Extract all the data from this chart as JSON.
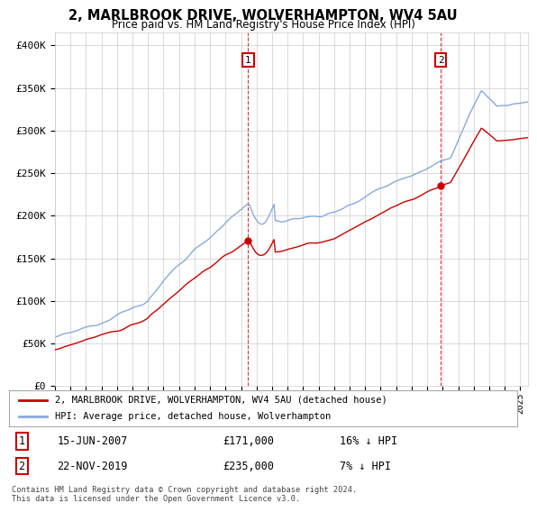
{
  "title": "2, MARLBROOK DRIVE, WOLVERHAMPTON, WV4 5AU",
  "subtitle": "Price paid vs. HM Land Registry's House Price Index (HPI)",
  "ylabel_ticks": [
    "£0",
    "£50K",
    "£100K",
    "£150K",
    "£200K",
    "£250K",
    "£300K",
    "£350K",
    "£400K"
  ],
  "ytick_values": [
    0,
    50000,
    100000,
    150000,
    200000,
    250000,
    300000,
    350000,
    400000
  ],
  "ylim": [
    0,
    415000
  ],
  "legend_property_label": "2, MARLBROOK DRIVE, WOLVERHAMPTON, WV4 5AU (detached house)",
  "legend_hpi_label": "HPI: Average price, detached house, Wolverhampton",
  "annotation1_num": "1",
  "annotation1_date": "15-JUN-2007",
  "annotation1_price": "£171,000",
  "annotation1_pct": "16% ↓ HPI",
  "annotation2_num": "2",
  "annotation2_date": "22-NOV-2019",
  "annotation2_price": "£235,000",
  "annotation2_pct": "7% ↓ HPI",
  "footer": "Contains HM Land Registry data © Crown copyright and database right 2024.\nThis data is licensed under the Open Government Licence v3.0.",
  "property_color": "#cc0000",
  "hpi_color": "#88aadd",
  "vline_color": "#cc0000",
  "background_color": "#ffffff",
  "grid_color": "#cccccc",
  "sale1_year": 2007.46,
  "sale1_price": 171000,
  "sale2_year": 2019.88,
  "sale2_price": 235000
}
